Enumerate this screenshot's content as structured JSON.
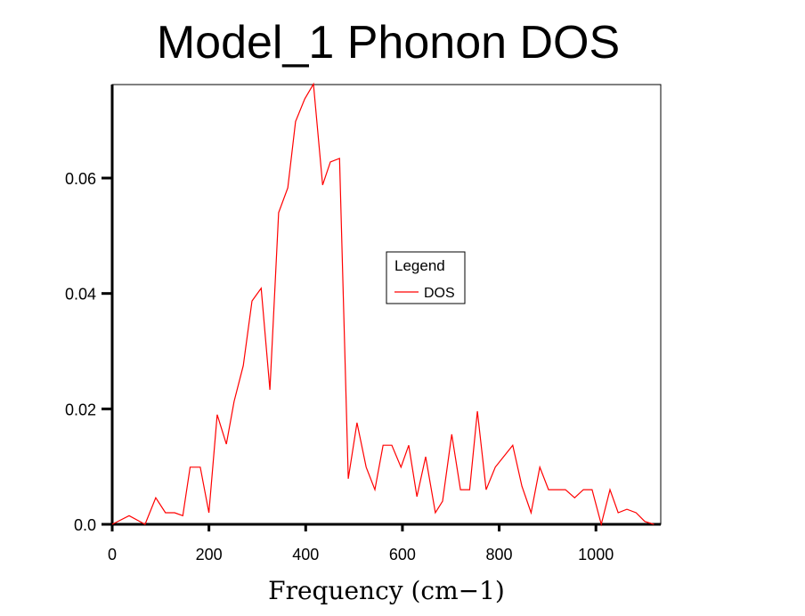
{
  "chart_data": {
    "type": "line",
    "title": "Model_1 Phonon DOS",
    "xlabel": "Frequency (cm−1)",
    "ylabel": "",
    "xlim": [
      0,
      1134
    ],
    "ylim": [
      0,
      0.0762
    ],
    "xticks": [
      0,
      200,
      400,
      600,
      800,
      1000
    ],
    "xtick_labels": [
      "0",
      "200",
      "400",
      "600",
      "800",
      "1000"
    ],
    "yticks": [
      0,
      0.02,
      0.04,
      0.06
    ],
    "ytick_labels": [
      "0.0",
      "0.02",
      "0.04",
      "0.06"
    ],
    "grid": false,
    "legend": {
      "title": "Legend",
      "placement": "center-right",
      "entries": [
        "DOS"
      ]
    },
    "series": [
      {
        "name": "DOS",
        "color": "#ff0000",
        "x": [
          0,
          35,
          68,
          90,
          110,
          129,
          146,
          161,
          182,
          200,
          217,
          236,
          252,
          271,
          289,
          308,
          326,
          344,
          363,
          379,
          398,
          416,
          435,
          451,
          470,
          488,
          506,
          525,
          543,
          560,
          578,
          597,
          613,
          630,
          648,
          668,
          683,
          702,
          720,
          739,
          755,
          773,
          792,
          828,
          847,
          866,
          884,
          902,
          937,
          956,
          974,
          992,
          1011,
          1029,
          1046,
          1064,
          1083,
          1101,
          1120
        ],
        "y": [
          0,
          0.0015,
          0,
          0.0046,
          0.002,
          0.002,
          0.0015,
          0.0099,
          0.0099,
          0.002,
          0.019,
          0.0139,
          0.0213,
          0.0275,
          0.0387,
          0.0409,
          0.0233,
          0.054,
          0.0583,
          0.0698,
          0.0737,
          0.0763,
          0.0588,
          0.0628,
          0.0634,
          0.0079,
          0.0176,
          0.0099,
          0.006,
          0.0137,
          0.0137,
          0.0099,
          0.0137,
          0.0048,
          0.0117,
          0.002,
          0.004,
          0.0156,
          0.006,
          0.006,
          0.0196,
          0.006,
          0.0099,
          0.0137,
          0.0066,
          0.002,
          0.0099,
          0.006,
          0.006,
          0.0046,
          0.006,
          0.006,
          0,
          0.006,
          0.002,
          0.0026,
          0.002,
          0.0005,
          0
        ]
      }
    ]
  }
}
